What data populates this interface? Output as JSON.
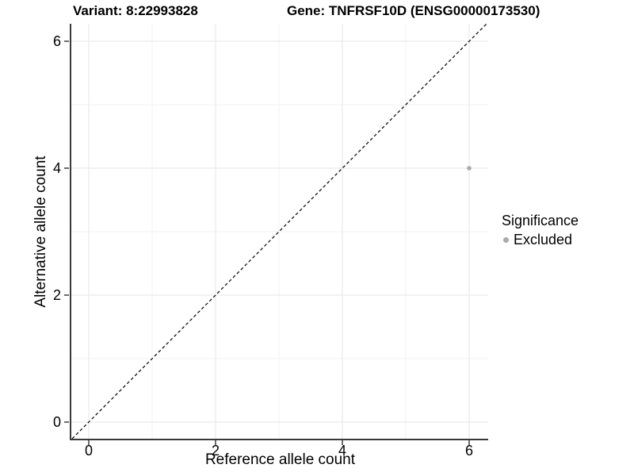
{
  "titles": {
    "variant": "Variant: 8:22993828",
    "gene": "Gene: TNFRSF10D (ENSG00000173530)"
  },
  "axes": {
    "x_label": "Reference allele count",
    "y_label": "Alternative allele count"
  },
  "legend": {
    "title": "Significance",
    "entries": [
      {
        "label": "Excluded",
        "color": "#aaaaaa"
      }
    ]
  },
  "chart_data": {
    "type": "scatter",
    "title": "Variant: 8:22993828 — Gene: TNFRSF10D (ENSG00000173530)",
    "xlabel": "Reference allele count",
    "ylabel": "Alternative allele count",
    "xlim": [
      -0.275,
      6.3
    ],
    "ylim": [
      -0.2625,
      6.275
    ],
    "x_ticks": [
      0,
      2,
      4,
      6
    ],
    "x_minor_ticks": [
      1,
      3,
      5
    ],
    "y_ticks": [
      0,
      2,
      4,
      6
    ],
    "y_minor_ticks": [
      1,
      3,
      5
    ],
    "grid": "on",
    "legend_position": "right",
    "series": [
      {
        "name": "Excluded",
        "color": "#aaaaaa",
        "points": [
          {
            "x": 6,
            "y": 4
          }
        ]
      }
    ],
    "reference_line": {
      "type": "identity",
      "style": "dashed",
      "color": "#000000"
    }
  },
  "colors": {
    "background": "#ffffff",
    "grid_major": "#e5e5e5",
    "grid_minor": "#f2f2f2",
    "axis_line": "#3a3a3a",
    "tick_text": "#000000",
    "point": "#aaaaaa",
    "dashed_line": "#000000"
  }
}
